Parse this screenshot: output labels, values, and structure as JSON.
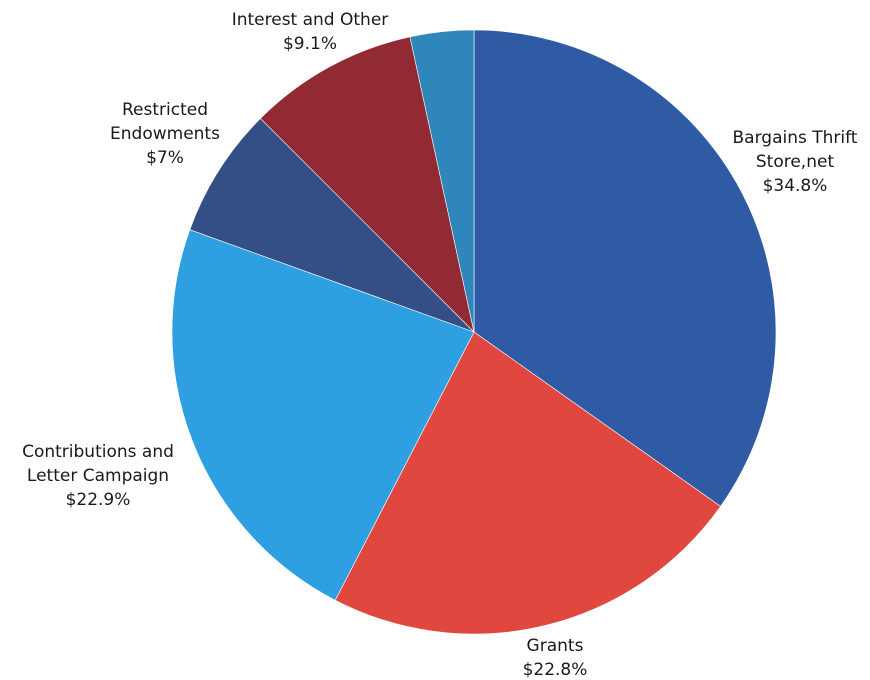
{
  "chart_data": {
    "type": "pie",
    "title": "",
    "start_angle_deg": 0,
    "direction": "clockwise",
    "slices": [
      {
        "label_lines": [
          "Bargains Thrift",
          "Store,net"
        ],
        "value_label": "$34.8%",
        "value": 34.8,
        "color": "#2F5BA5"
      },
      {
        "label_lines": [
          "Grants"
        ],
        "value_label": "$22.8%",
        "value": 22.8,
        "color": "#E0483F"
      },
      {
        "label_lines": [
          "Contributions and",
          "Letter Campaign"
        ],
        "value_label": "$22.9%",
        "value": 22.9,
        "color": "#2E9FE0"
      },
      {
        "label_lines": [
          "Restricted",
          "Endowments"
        ],
        "value_label": "$7%",
        "value": 7,
        "color": "#344F86"
      },
      {
        "label_lines": [
          "Interest and Other"
        ],
        "value_label": "$9.1%",
        "value": 9.1,
        "color": "#922A33"
      },
      {
        "label_lines": [],
        "value_label": "",
        "value": 3.4,
        "color": "#2E86BA"
      }
    ]
  }
}
